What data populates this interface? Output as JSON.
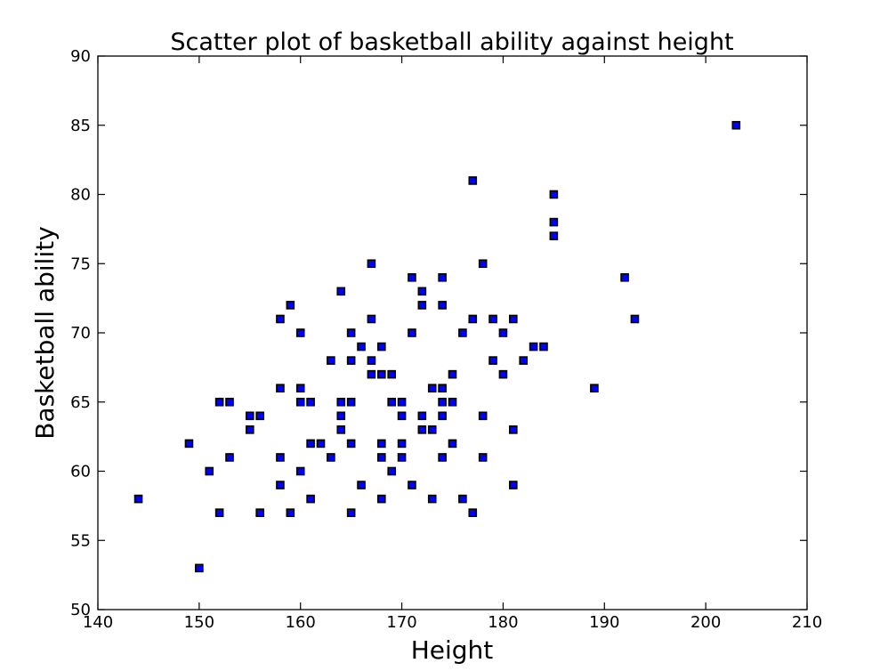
{
  "chart_data": {
    "type": "scatter",
    "title": "Scatter plot of basketball ability against height",
    "xlabel": "Height",
    "ylabel": "Basketball ability",
    "xlim": [
      140,
      210
    ],
    "ylim": [
      50,
      90
    ],
    "xticks": [
      140,
      150,
      160,
      170,
      180,
      190,
      200,
      210
    ],
    "yticks": [
      50,
      55,
      60,
      65,
      70,
      75,
      80,
      85,
      90
    ],
    "grid": false,
    "marker": "square",
    "colors": {
      "marker_fill": "#0000ff",
      "marker_edge": "#000000"
    },
    "points": [
      [
        144,
        58
      ],
      [
        149,
        62
      ],
      [
        150,
        53
      ],
      [
        151,
        60
      ],
      [
        152,
        65
      ],
      [
        152,
        57
      ],
      [
        153,
        65
      ],
      [
        153,
        61
      ],
      [
        155,
        64
      ],
      [
        155,
        63
      ],
      [
        156,
        64
      ],
      [
        156,
        57
      ],
      [
        158,
        71
      ],
      [
        158,
        66
      ],
      [
        158,
        61
      ],
      [
        158,
        59
      ],
      [
        159,
        72
      ],
      [
        159,
        57
      ],
      [
        160,
        70
      ],
      [
        160,
        66
      ],
      [
        160,
        65
      ],
      [
        160,
        60
      ],
      [
        161,
        65
      ],
      [
        161,
        62
      ],
      [
        161,
        58
      ],
      [
        162,
        62
      ],
      [
        163,
        68
      ],
      [
        163,
        61
      ],
      [
        164,
        73
      ],
      [
        164,
        65
      ],
      [
        164,
        64
      ],
      [
        164,
        63
      ],
      [
        165,
        70
      ],
      [
        165,
        68
      ],
      [
        165,
        65
      ],
      [
        165,
        62
      ],
      [
        165,
        57
      ],
      [
        166,
        69
      ],
      [
        166,
        59
      ],
      [
        167,
        75
      ],
      [
        167,
        71
      ],
      [
        167,
        68
      ],
      [
        167,
        67
      ],
      [
        168,
        69
      ],
      [
        168,
        67
      ],
      [
        168,
        62
      ],
      [
        168,
        61
      ],
      [
        168,
        58
      ],
      [
        169,
        67
      ],
      [
        169,
        65
      ],
      [
        169,
        60
      ],
      [
        170,
        65
      ],
      [
        170,
        64
      ],
      [
        170,
        62
      ],
      [
        170,
        61
      ],
      [
        171,
        74
      ],
      [
        171,
        70
      ],
      [
        171,
        59
      ],
      [
        172,
        73
      ],
      [
        172,
        72
      ],
      [
        172,
        64
      ],
      [
        172,
        63
      ],
      [
        173,
        66
      ],
      [
        173,
        63
      ],
      [
        173,
        58
      ],
      [
        174,
        74
      ],
      [
        174,
        72
      ],
      [
        174,
        66
      ],
      [
        174,
        65
      ],
      [
        174,
        64
      ],
      [
        174,
        61
      ],
      [
        175,
        67
      ],
      [
        175,
        65
      ],
      [
        175,
        62
      ],
      [
        176,
        70
      ],
      [
        176,
        58
      ],
      [
        177,
        81
      ],
      [
        177,
        71
      ],
      [
        177,
        57
      ],
      [
        178,
        75
      ],
      [
        178,
        64
      ],
      [
        178,
        61
      ],
      [
        179,
        71
      ],
      [
        179,
        68
      ],
      [
        180,
        70
      ],
      [
        180,
        67
      ],
      [
        181,
        71
      ],
      [
        181,
        63
      ],
      [
        181,
        59
      ],
      [
        182,
        68
      ],
      [
        183,
        69
      ],
      [
        184,
        69
      ],
      [
        185,
        80
      ],
      [
        185,
        78
      ],
      [
        185,
        77
      ],
      [
        189,
        66
      ],
      [
        192,
        74
      ],
      [
        193,
        71
      ],
      [
        203,
        85
      ]
    ]
  }
}
